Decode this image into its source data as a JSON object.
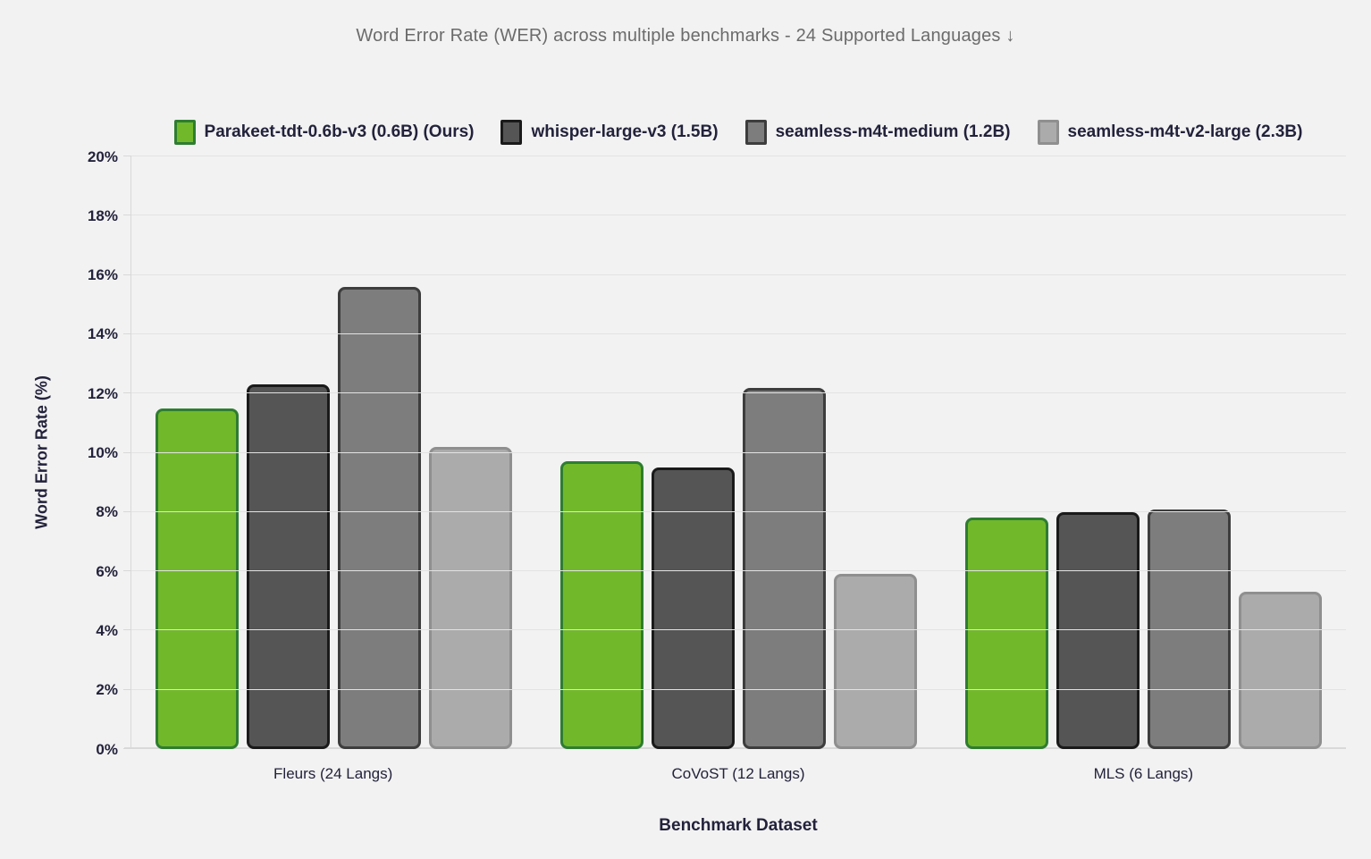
{
  "title": "Word Error Rate (WER) across multiple benchmarks - 24 Supported Languages ↓",
  "colors": {
    "background": "#f2f2f2",
    "gridline": "#e3e3e3",
    "axis_line": "#d8d8d8",
    "text_dark": "#22223c",
    "title_text": "#6b6b6b",
    "accent_green": "#72b82b"
  },
  "chart_data": {
    "type": "bar",
    "title": "Word Error Rate (WER) across multiple benchmarks - 24 Supported Languages ↓",
    "xlabel": "Benchmark Dataset",
    "ylabel": "Word Error Rate (%)",
    "categories": [
      "Fleurs (24 Langs)",
      "CoVoST (12 Langs)",
      "MLS (6 Langs)"
    ],
    "series": [
      {
        "name": "Parakeet-tdt-0.6b-v3 (0.6B) (Ours)",
        "values": [
          11.5,
          9.7,
          7.8
        ],
        "fill": "#72b82b",
        "border": "#2e7d31"
      },
      {
        "name": "whisper-large-v3 (1.5B)",
        "values": [
          12.3,
          9.5,
          8.0
        ],
        "fill": "#555555",
        "border": "#1a1a1a"
      },
      {
        "name": "seamless-m4t-medium (1.2B)",
        "values": [
          15.6,
          12.2,
          8.1
        ],
        "fill": "#7d7d7d",
        "border": "#3d3d3d"
      },
      {
        "name": "seamless-m4t-v2-large (2.3B)",
        "values": [
          10.2,
          5.9,
          5.3
        ],
        "fill": "#ababab",
        "border": "#8f8f8f"
      }
    ],
    "ylim": [
      0,
      20
    ],
    "ytick_step": 2,
    "ytick_suffix": "%",
    "grid": true,
    "legend_position": "top",
    "lower_is_better": true
  }
}
